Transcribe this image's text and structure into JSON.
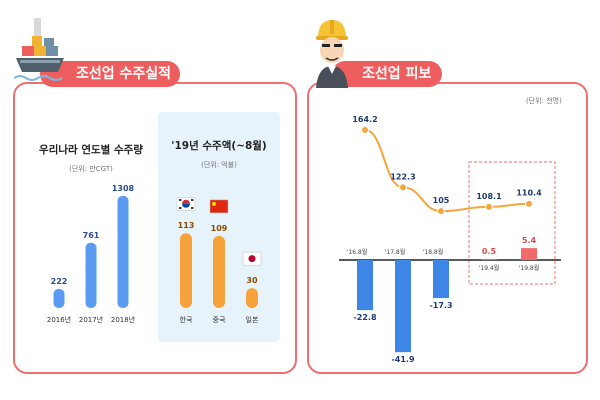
{
  "left_section": {
    "title": "조선업 수주실적"
  },
  "right_section": {
    "title": "조선업 피보험자",
    "unit": "(단위: 천명)"
  },
  "chart_data": [
    {
      "type": "bar",
      "title": "우리나라 연도별 수주량",
      "unit": "(단위: 만CGT)",
      "categories": [
        "2016년",
        "2017년",
        "2018년"
      ],
      "values": [
        222,
        761,
        1308
      ],
      "value_labels": [
        "222",
        "761",
        "1308"
      ],
      "ylim": [
        0,
        1400
      ],
      "color": "#5b9cf2"
    },
    {
      "type": "bar",
      "title": "'19년 수주액(~8월)",
      "unit": "(단위: 억불)",
      "categories": [
        "한국",
        "중국",
        "일본"
      ],
      "values": [
        113,
        109,
        30
      ],
      "value_labels": [
        "113",
        "109",
        "30"
      ],
      "ylim": [
        0,
        130
      ],
      "color": "#f7a13b",
      "flags": [
        "korea-flag-icon",
        "china-flag-icon",
        "japan-flag-icon"
      ]
    },
    {
      "type": "line+bar",
      "categories": [
        "'16.8월",
        "'17.8월",
        "'18.8월",
        "'19.4월",
        "'19.8월"
      ],
      "line_values": [
        164.2,
        122.3,
        105,
        108.1,
        110.4
      ],
      "line_labels": [
        "164.2",
        "122.3",
        "105",
        "108.1",
        "110.4"
      ],
      "bar_values": [
        -22.8,
        -41.9,
        -17.3,
        0.5,
        5.4
      ],
      "bar_labels": [
        "-22.8",
        "-41.9",
        "-17.3",
        "0.5",
        "5.4"
      ],
      "line_color": "#f4a63c",
      "negative_color": "#3d86e6",
      "positive_color": "#ef6a6a",
      "highlight": [
        "'19.4월",
        "'19.8월"
      ]
    }
  ]
}
